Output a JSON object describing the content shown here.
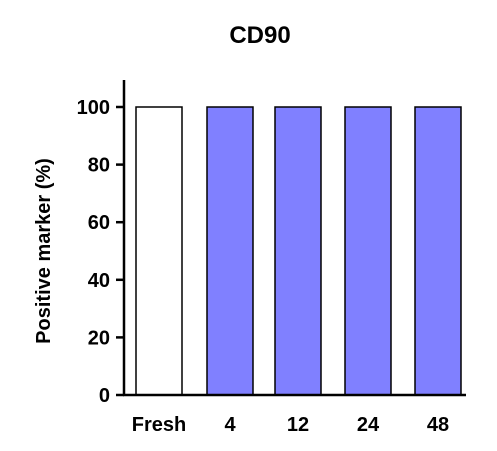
{
  "chart_data": {
    "type": "bar",
    "title": "CD90",
    "xlabel": "",
    "ylabel": "Positive marker (%)",
    "categories": [
      "Fresh",
      "4",
      "12",
      "24",
      "48"
    ],
    "values": [
      100,
      100,
      100,
      100,
      100
    ],
    "bar_colors": [
      "#ffffff",
      "#8080ff",
      "#8080ff",
      "#8080ff",
      "#8080ff"
    ],
    "ylim": [
      0,
      110
    ],
    "yticks": [
      0,
      20,
      40,
      60,
      80,
      100
    ],
    "grid": false,
    "legend": "none"
  }
}
